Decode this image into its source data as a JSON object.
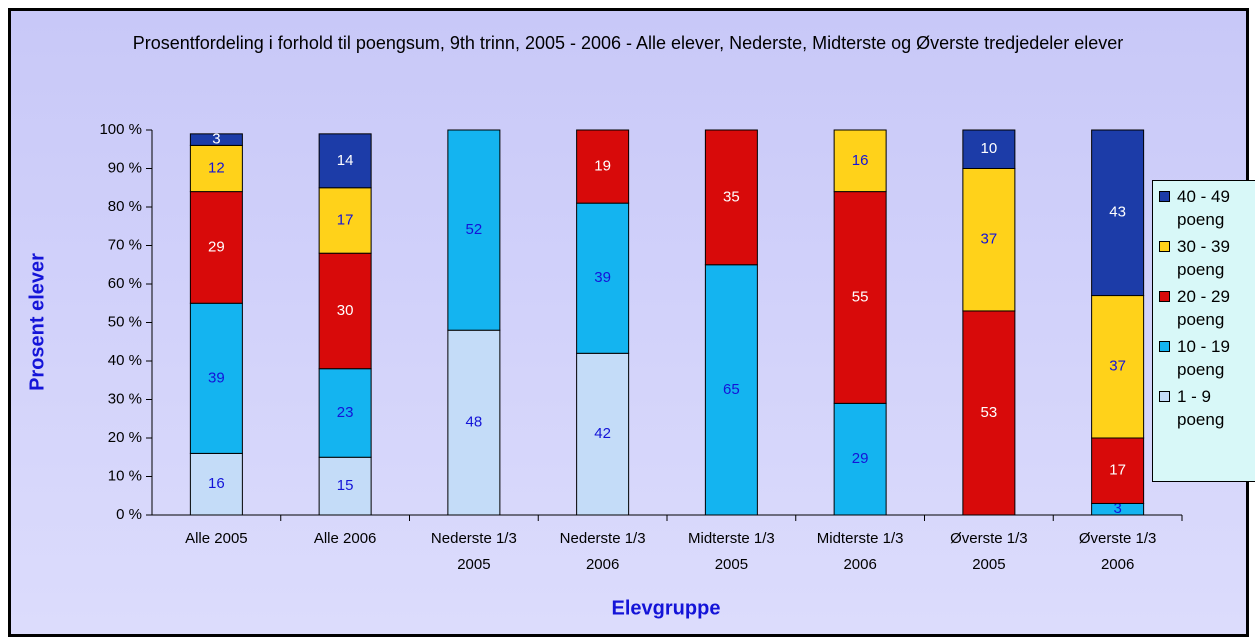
{
  "chart_data": {
    "type": "stacked_bar",
    "title": "Prosentfordeling i forhold til poengsum, 9th trinn, 2005 - 2006 - Alle elever, Nederste, Midterste og Øverste tredjedeler elever",
    "x_label": "Elevgruppe",
    "y_label": "Prosent elever",
    "categories": [
      [
        "Alle 2005"
      ],
      [
        "Alle 2006"
      ],
      [
        "Nederste 1/3",
        "2005"
      ],
      [
        "Nederste 1/3",
        "2006"
      ],
      [
        "Midterste 1/3",
        "2005"
      ],
      [
        "Midterste 1/3",
        "2006"
      ],
      [
        "Øverste 1/3",
        "2005"
      ],
      [
        "Øverste 1/3",
        "2006"
      ]
    ],
    "series": [
      {
        "name": "1 - 9 poeng",
        "color": "#c4dcf8",
        "values": [
          16,
          15,
          48,
          42,
          null,
          null,
          null,
          null
        ]
      },
      {
        "name": "10 - 19 poeng",
        "color": "#14b4f0",
        "values": [
          39,
          23,
          52,
          39,
          65,
          29,
          null,
          3
        ]
      },
      {
        "name": "20 - 29 poeng",
        "color": "#d80a0a",
        "values": [
          29,
          30,
          null,
          19,
          35,
          55,
          53,
          17
        ]
      },
      {
        "name": "30 - 39 poeng",
        "color": "#ffd21a",
        "values": [
          12,
          17,
          null,
          null,
          null,
          16,
          37,
          37
        ]
      },
      {
        "name": "40 - 49 poeng",
        "color": "#1c3ca8",
        "values": [
          3,
          14,
          null,
          null,
          null,
          null,
          10,
          43
        ]
      }
    ],
    "ylim": [
      0,
      100
    ],
    "yticks": [
      {
        "value": 0,
        "label": "0 %"
      },
      {
        "value": 10,
        "label": "10 %"
      },
      {
        "value": 20,
        "label": "20 %"
      },
      {
        "value": 30,
        "label": "30 %"
      },
      {
        "value": 40,
        "label": "40 %"
      },
      {
        "value": 50,
        "label": "50 %"
      },
      {
        "value": 60,
        "label": "60 %"
      },
      {
        "value": 70,
        "label": "70 %"
      },
      {
        "value": 80,
        "label": "80 %"
      },
      {
        "value": 90,
        "label": "90 %"
      },
      {
        "value": 100,
        "label": "100 %"
      }
    ],
    "grid": false,
    "legend": "right"
  }
}
